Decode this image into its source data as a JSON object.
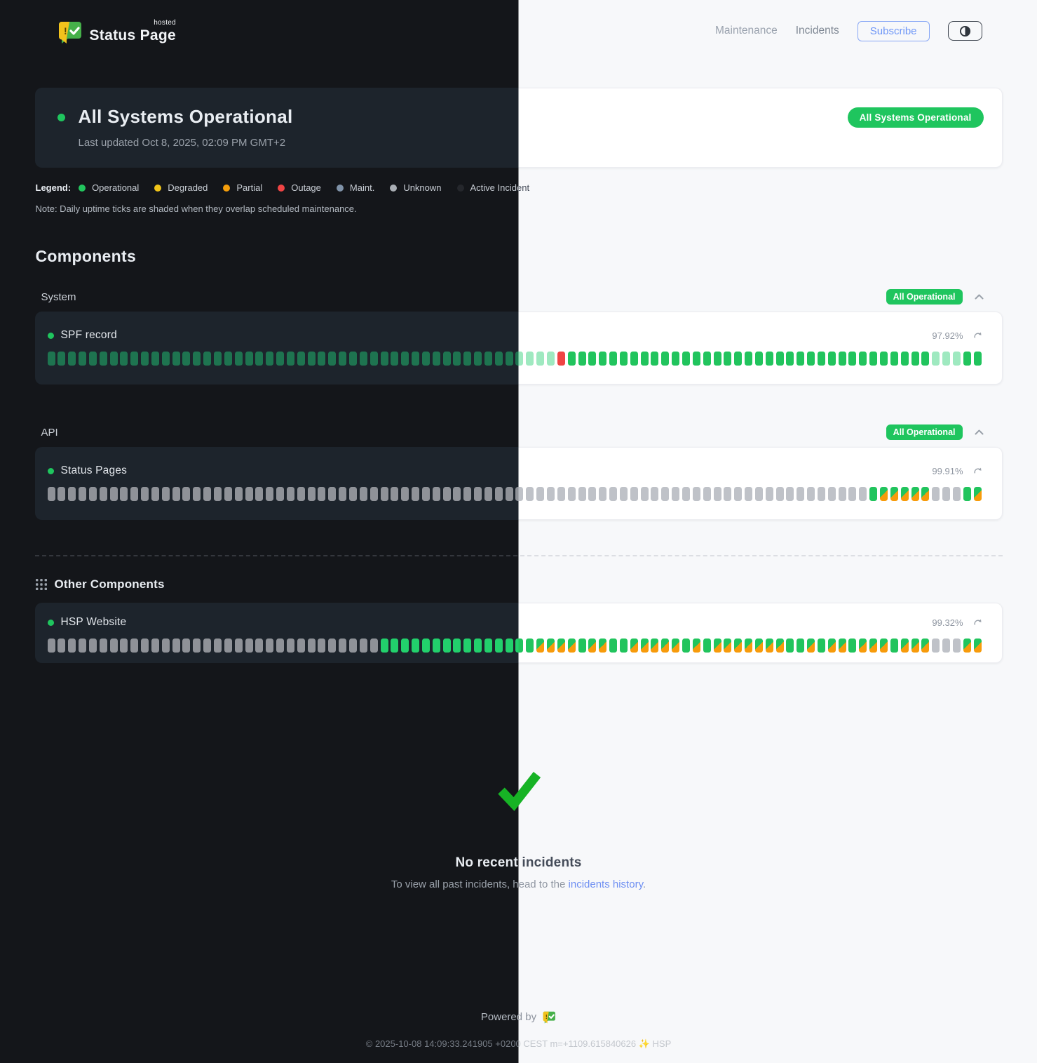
{
  "brand": {
    "name": "Status Page",
    "superscript": "hosted"
  },
  "nav": {
    "maintenance": "Maintenance",
    "incidents": "Incidents",
    "subscribe": "Subscribe"
  },
  "hero": {
    "title": "All Systems Operational",
    "last_updated": "Last updated Oct 8, 2025, 02:09 PM GMT+2",
    "badge": "All Systems Operational"
  },
  "legend": {
    "label": "Legend:",
    "items": [
      {
        "label": "Operational",
        "color": "#22c55e"
      },
      {
        "label": "Degraded",
        "color": "#f0c419"
      },
      {
        "label": "Partial",
        "color": "#f59e0b"
      },
      {
        "label": "Outage",
        "color": "#ef4444"
      },
      {
        "label": "Maint.",
        "color": "#7f92a8"
      },
      {
        "label": "Unknown",
        "color": "#a9aeb4"
      },
      {
        "label": "Active Incident",
        "color": "#25272c"
      }
    ],
    "note": "Note: Daily uptime ticks are shaded when they overlap scheduled maintenance."
  },
  "components": {
    "heading": "Components",
    "tick_legend": {
      "g": "operational",
      "s": "operational-shaded-maintenance",
      "u": "unknown",
      "r": "outage",
      "m": "maintenance-overlap"
    },
    "groups": [
      {
        "name": "System",
        "badge": "All Operational",
        "rows": [
          {
            "name": "SPF record",
            "uptime": "97.92%",
            "ticks": "sssssssssssssssssssssssssssssssssssssssssssssssssrgggggggggggggggggggggggggggggggggggsssgg"
          }
        ]
      },
      {
        "name": "API",
        "badge": "All Operational",
        "rows": [
          {
            "name": "Status Pages",
            "uptime": "99.91%",
            "ticks": "uuuuuuuuuuuuuuuuuuuuuuuuuuuuuuuuuuuuuuuuuuuuuuuuuuuuuuuuuuuuuuuuuuuuuuuuuuuuuuugmmmmmuuugm"
          }
        ]
      }
    ],
    "other": {
      "name": "Other Components",
      "rows": [
        {
          "name": "HSP Website",
          "uptime": "99.32%",
          "ticks": "uuuuuuuuuuuuuuuuuuuuuuuuuuuuuuuugggggggggggggggmmmmgmmggmmmmmgmgmmmmmmmggmgmmgmmmgmmmuuumm"
        }
      ]
    }
  },
  "incidents": {
    "title": "No recent incidents",
    "subtitle_prefix": "To view all past incidents, head to the ",
    "link": "incidents history",
    "subtitle_suffix": "."
  },
  "footer": {
    "powered_by": "Powered by",
    "copyright": "© 2025-10-08 14:09:33.241905 +0200 CEST m=+1109.615840626 ✨ HSP"
  },
  "colors": {
    "accent_green": "#1fc55e",
    "link_blue": "#6e8ff2",
    "outage_red": "#ef4444",
    "maintenance_orange": "#f59e0b"
  }
}
